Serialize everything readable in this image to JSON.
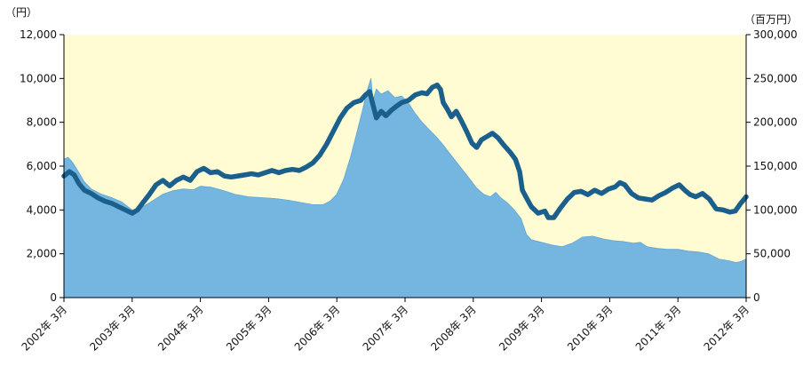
{
  "chart_data": {
    "type": "line",
    "title": "",
    "left_unit": "（円）",
    "right_unit": "（百万円）",
    "colors": {
      "plot_background": "#FFFBD2",
      "area_fill": "#74B6DF",
      "line": "#1B5F8C"
    },
    "left_axis": {
      "ticks": [
        "0",
        "2,000",
        "4,000",
        "6,000",
        "8,000",
        "10,000",
        "12,000"
      ],
      "range": [
        0,
        12000
      ]
    },
    "right_axis": {
      "ticks": [
        "0",
        "50,000",
        "100,000",
        "150,000",
        "200,000",
        "250,000",
        "300,000"
      ],
      "range": [
        0,
        300000
      ]
    },
    "x_labels": [
      "2002年 3月",
      "2003年 3月",
      "2004年 3月",
      "2005年 3月",
      "2006年 3月",
      "2007年 3月",
      "2008年 3月",
      "2009年 3月",
      "2010年 3月",
      "2011年 3月",
      "2012年 3月"
    ],
    "x_range": [
      0,
      10
    ],
    "series": [
      {
        "axis": "right",
        "style": "area",
        "points": [
          [
            0.0,
            158000
          ],
          [
            0.06,
            160000
          ],
          [
            0.12,
            155000
          ],
          [
            0.2,
            145000
          ],
          [
            0.3,
            132000
          ],
          [
            0.4,
            124000
          ],
          [
            0.55,
            118000
          ],
          [
            0.7,
            114000
          ],
          [
            0.85,
            109000
          ],
          [
            0.95,
            103000
          ],
          [
            1.0,
            100000
          ],
          [
            1.1,
            101000
          ],
          [
            1.25,
            108000
          ],
          [
            1.45,
            118000
          ],
          [
            1.6,
            122000
          ],
          [
            1.75,
            124000
          ],
          [
            1.9,
            123000
          ],
          [
            2.0,
            127000
          ],
          [
            2.15,
            126000
          ],
          [
            2.3,
            123000
          ],
          [
            2.5,
            118000
          ],
          [
            2.7,
            115000
          ],
          [
            2.9,
            114000
          ],
          [
            3.1,
            113000
          ],
          [
            3.3,
            111000
          ],
          [
            3.5,
            108000
          ],
          [
            3.65,
            106000
          ],
          [
            3.8,
            106000
          ],
          [
            3.9,
            110000
          ],
          [
            4.0,
            118000
          ],
          [
            4.1,
            135000
          ],
          [
            4.2,
            160000
          ],
          [
            4.3,
            190000
          ],
          [
            4.38,
            215000
          ],
          [
            4.45,
            238000
          ],
          [
            4.5,
            250000
          ],
          [
            4.53,
            225000
          ],
          [
            4.58,
            238000
          ],
          [
            4.65,
            232000
          ],
          [
            4.75,
            236000
          ],
          [
            4.85,
            228000
          ],
          [
            4.95,
            230000
          ],
          [
            5.05,
            222000
          ],
          [
            5.15,
            210000
          ],
          [
            5.25,
            200000
          ],
          [
            5.35,
            192000
          ],
          [
            5.45,
            184000
          ],
          [
            5.55,
            175000
          ],
          [
            5.65,
            165000
          ],
          [
            5.75,
            155000
          ],
          [
            5.85,
            145000
          ],
          [
            5.95,
            135000
          ],
          [
            6.05,
            125000
          ],
          [
            6.15,
            118000
          ],
          [
            6.25,
            115000
          ],
          [
            6.33,
            120000
          ],
          [
            6.4,
            114000
          ],
          [
            6.5,
            108000
          ],
          [
            6.6,
            100000
          ],
          [
            6.7,
            90000
          ],
          [
            6.78,
            72000
          ],
          [
            6.85,
            66000
          ],
          [
            7.0,
            63000
          ],
          [
            7.15,
            60000
          ],
          [
            7.3,
            58000
          ],
          [
            7.45,
            62000
          ],
          [
            7.6,
            69000
          ],
          [
            7.75,
            70000
          ],
          [
            7.9,
            67000
          ],
          [
            8.05,
            65000
          ],
          [
            8.2,
            64000
          ],
          [
            8.35,
            62000
          ],
          [
            8.45,
            63000
          ],
          [
            8.55,
            58000
          ],
          [
            8.7,
            56000
          ],
          [
            8.85,
            55000
          ],
          [
            9.0,
            55000
          ],
          [
            9.15,
            53000
          ],
          [
            9.3,
            52000
          ],
          [
            9.45,
            50000
          ],
          [
            9.6,
            44000
          ],
          [
            9.75,
            42000
          ],
          [
            9.85,
            40000
          ],
          [
            9.92,
            41000
          ],
          [
            10.0,
            44000
          ]
        ]
      },
      {
        "axis": "left",
        "style": "line",
        "points": [
          [
            0.0,
            5550
          ],
          [
            0.08,
            5750
          ],
          [
            0.15,
            5600
          ],
          [
            0.22,
            5200
          ],
          [
            0.3,
            4900
          ],
          [
            0.4,
            4750
          ],
          [
            0.5,
            4550
          ],
          [
            0.6,
            4400
          ],
          [
            0.7,
            4300
          ],
          [
            0.8,
            4150
          ],
          [
            0.9,
            4000
          ],
          [
            1.0,
            3850
          ],
          [
            1.08,
            4000
          ],
          [
            1.15,
            4300
          ],
          [
            1.25,
            4700
          ],
          [
            1.35,
            5150
          ],
          [
            1.45,
            5350
          ],
          [
            1.55,
            5100
          ],
          [
            1.65,
            5350
          ],
          [
            1.75,
            5500
          ],
          [
            1.85,
            5350
          ],
          [
            1.95,
            5750
          ],
          [
            2.05,
            5900
          ],
          [
            2.15,
            5700
          ],
          [
            2.25,
            5750
          ],
          [
            2.35,
            5550
          ],
          [
            2.45,
            5500
          ],
          [
            2.55,
            5550
          ],
          [
            2.65,
            5600
          ],
          [
            2.75,
            5650
          ],
          [
            2.85,
            5600
          ],
          [
            2.95,
            5700
          ],
          [
            3.05,
            5800
          ],
          [
            3.15,
            5700
          ],
          [
            3.25,
            5800
          ],
          [
            3.35,
            5850
          ],
          [
            3.45,
            5800
          ],
          [
            3.55,
            5950
          ],
          [
            3.65,
            6150
          ],
          [
            3.75,
            6500
          ],
          [
            3.85,
            7000
          ],
          [
            3.95,
            7600
          ],
          [
            4.05,
            8200
          ],
          [
            4.15,
            8650
          ],
          [
            4.25,
            8900
          ],
          [
            4.35,
            9000
          ],
          [
            4.42,
            9250
          ],
          [
            4.48,
            9400
          ],
          [
            4.53,
            8800
          ],
          [
            4.58,
            8200
          ],
          [
            4.65,
            8500
          ],
          [
            4.72,
            8300
          ],
          [
            4.8,
            8550
          ],
          [
            4.88,
            8750
          ],
          [
            4.95,
            8900
          ],
          [
            5.05,
            9000
          ],
          [
            5.15,
            9250
          ],
          [
            5.25,
            9350
          ],
          [
            5.32,
            9300
          ],
          [
            5.4,
            9600
          ],
          [
            5.47,
            9700
          ],
          [
            5.52,
            9500
          ],
          [
            5.56,
            8900
          ],
          [
            5.62,
            8600
          ],
          [
            5.68,
            8250
          ],
          [
            5.75,
            8500
          ],
          [
            5.82,
            8100
          ],
          [
            5.9,
            7600
          ],
          [
            5.98,
            7050
          ],
          [
            6.05,
            6850
          ],
          [
            6.12,
            7200
          ],
          [
            6.2,
            7350
          ],
          [
            6.28,
            7500
          ],
          [
            6.36,
            7300
          ],
          [
            6.45,
            6950
          ],
          [
            6.55,
            6600
          ],
          [
            6.62,
            6300
          ],
          [
            6.68,
            5750
          ],
          [
            6.72,
            4900
          ],
          [
            6.78,
            4550
          ],
          [
            6.85,
            4150
          ],
          [
            6.95,
            3850
          ],
          [
            7.05,
            3950
          ],
          [
            7.1,
            3650
          ],
          [
            7.18,
            3650
          ],
          [
            7.28,
            4100
          ],
          [
            7.38,
            4500
          ],
          [
            7.48,
            4800
          ],
          [
            7.58,
            4850
          ],
          [
            7.68,
            4700
          ],
          [
            7.78,
            4900
          ],
          [
            7.88,
            4750
          ],
          [
            7.98,
            4950
          ],
          [
            8.08,
            5050
          ],
          [
            8.15,
            5250
          ],
          [
            8.22,
            5150
          ],
          [
            8.32,
            4750
          ],
          [
            8.42,
            4550
          ],
          [
            8.52,
            4500
          ],
          [
            8.62,
            4450
          ],
          [
            8.72,
            4650
          ],
          [
            8.82,
            4800
          ],
          [
            8.92,
            5000
          ],
          [
            9.02,
            5150
          ],
          [
            9.1,
            4900
          ],
          [
            9.18,
            4700
          ],
          [
            9.26,
            4600
          ],
          [
            9.36,
            4750
          ],
          [
            9.46,
            4500
          ],
          [
            9.56,
            4050
          ],
          [
            9.66,
            4000
          ],
          [
            9.76,
            3900
          ],
          [
            9.84,
            3950
          ],
          [
            9.92,
            4300
          ],
          [
            10.0,
            4600
          ]
        ]
      }
    ]
  }
}
